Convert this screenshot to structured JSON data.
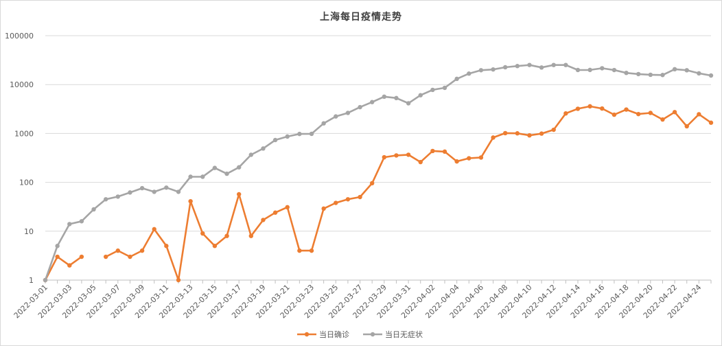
{
  "chart_data": {
    "type": "line",
    "title": "上海每日疫情走势",
    "xlabel": "",
    "ylabel": "",
    "y_scale": "log",
    "ylim": [
      1,
      100000
    ],
    "y_ticks": [
      "1",
      "10",
      "100",
      "1000",
      "10000",
      "100000"
    ],
    "grid": true,
    "legend_position": "bottom",
    "x": [
      "2022-03-01",
      "2022-03-02",
      "2022-03-03",
      "2022-03-04",
      "2022-03-05",
      "2022-03-06",
      "2022-03-07",
      "2022-03-08",
      "2022-03-09",
      "2022-03-10",
      "2022-03-11",
      "2022-03-12",
      "2022-03-13",
      "2022-03-14",
      "2022-03-15",
      "2022-03-16",
      "2022-03-17",
      "2022-03-18",
      "2022-03-19",
      "2022-03-20",
      "2022-03-21",
      "2022-03-22",
      "2022-03-23",
      "2022-03-24",
      "2022-03-25",
      "2022-03-26",
      "2022-03-27",
      "2022-03-28",
      "2022-03-29",
      "2022-03-30",
      "2022-03-31",
      "2022-04-01",
      "2022-04-02",
      "2022-04-03",
      "2022-04-04",
      "2022-04-05",
      "2022-04-06",
      "2022-04-07",
      "2022-04-08",
      "2022-04-09",
      "2022-04-10",
      "2022-04-11",
      "2022-04-12",
      "2022-04-13",
      "2022-04-14",
      "2022-04-15",
      "2022-04-16",
      "2022-04-17",
      "2022-04-18",
      "2022-04-19",
      "2022-04-20",
      "2022-04-21",
      "2022-04-22",
      "2022-04-23",
      "2022-04-24",
      "2022-04-25"
    ],
    "x_tick_labels": [
      "2022-03-01",
      "2022-03-03",
      "2022-03-05",
      "2022-03-07",
      "2022-03-09",
      "2022-03-11",
      "2022-03-13",
      "2022-03-15",
      "2022-03-17",
      "2022-03-19",
      "2022-03-21",
      "2022-03-23",
      "2022-03-25",
      "2022-03-27",
      "2022-03-29",
      "2022-03-31",
      "2022-04-02",
      "2022-04-04",
      "2022-04-06",
      "2022-04-08",
      "2022-04-10",
      "2022-04-12",
      "2022-04-14",
      "2022-04-16",
      "2022-04-18",
      "2022-04-20",
      "2022-04-22",
      "2022-04-24"
    ],
    "series": [
      {
        "name": "当日确诊",
        "color": "#ed7d31",
        "values": [
          1,
          3,
          2,
          3,
          null,
          3,
          4,
          3,
          4,
          11,
          5,
          1,
          41,
          9,
          5,
          8,
          57,
          8,
          17,
          24,
          31,
          4,
          4,
          29,
          38,
          45,
          50,
          96,
          326,
          355,
          367,
          260,
          438,
          425,
          268,
          311,
          322,
          824,
          1015,
          1006,
          914,
          994,
          1189,
          2573,
          3200,
          3590,
          3238,
          2417,
          3084,
          2494,
          2634,
          1931,
          2736,
          1401,
          2472,
          1661
        ]
      },
      {
        "name": "当日无症状",
        "color": "#a5a5a5",
        "values": [
          1,
          5,
          14,
          16,
          28,
          45,
          51,
          62,
          76,
          64,
          78,
          64,
          130,
          130,
          197,
          150,
          203,
          366,
          492,
          734,
          865,
          977,
          983,
          1609,
          2231,
          2631,
          3450,
          4381,
          5656,
          5298,
          4144,
          6051,
          7788,
          8581,
          13086,
          16766,
          19660,
          20398,
          22609,
          23937,
          25173,
          22348,
          25141,
          25146,
          19872,
          19923,
          21582,
          19831,
          17332,
          16407,
          15861,
          15698,
          20634,
          19657,
          16983,
          15319
        ]
      }
    ]
  }
}
